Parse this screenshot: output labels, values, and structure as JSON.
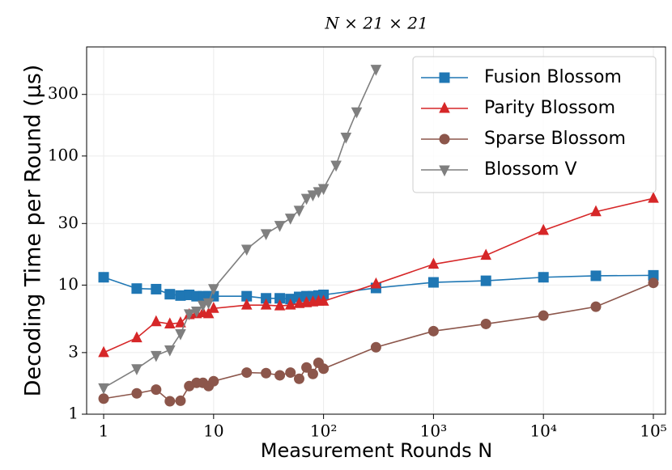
{
  "chart_data": {
    "type": "line",
    "title": "N × 21 × 21",
    "xlabel": "Measurement Rounds N",
    "ylabel": "Decoding Time per Round (μs)",
    "xscale": "log",
    "yscale": "log",
    "grid": true,
    "legend_loc": "upper right",
    "xlim": [
      0.7,
      129000
    ],
    "ylim": [
      1,
      700
    ],
    "xticks": [
      1,
      10,
      {
        "value": 100,
        "label": "10²"
      },
      {
        "value": 1000,
        "label": "10³"
      },
      {
        "value": 10000,
        "label": "10⁴"
      },
      {
        "value": 100000,
        "label": "10⁵"
      }
    ],
    "yticks": [
      1,
      3,
      10,
      30,
      100,
      300
    ],
    "series": [
      {
        "name": "Fusion Blossom",
        "color": "#1f77b4",
        "marker": "square",
        "x": [
          1,
          2,
          3,
          4,
          5,
          6,
          7,
          8,
          9,
          10,
          20,
          30,
          40,
          50,
          60,
          70,
          80,
          90,
          100,
          300,
          1000,
          3000,
          10000,
          30000,
          100000
        ],
        "values": [
          11.5,
          9.4,
          9.3,
          8.5,
          8.3,
          8.4,
          8.2,
          8.2,
          8.2,
          8.2,
          8.2,
          7.9,
          7.9,
          7.8,
          8.1,
          8.2,
          8.2,
          8.3,
          8.4,
          9.5,
          10.5,
          10.8,
          11.5,
          11.8,
          11.9
        ]
      },
      {
        "name": "Parity Blossom",
        "color": "#d62728",
        "marker": "triangle-up",
        "x": [
          1,
          2,
          3,
          4,
          5,
          6,
          7,
          8,
          9,
          10,
          20,
          30,
          40,
          50,
          60,
          70,
          80,
          90,
          100,
          300,
          1000,
          3000,
          10000,
          30000,
          100000
        ],
        "values": [
          3.0,
          3.9,
          5.2,
          5.0,
          5.1,
          5.9,
          6.0,
          6.1,
          6.0,
          6.6,
          7.0,
          7.0,
          6.9,
          7.0,
          7.2,
          7.3,
          7.4,
          7.5,
          7.5,
          10.2,
          14.5,
          17,
          26.5,
          37,
          47
        ]
      },
      {
        "name": "Sparse Blossom",
        "color": "#8c564b",
        "marker": "circle",
        "x": [
          1,
          2,
          3,
          4,
          5,
          6,
          7,
          8,
          9,
          10,
          20,
          30,
          40,
          50,
          60,
          70,
          80,
          90,
          100,
          300,
          1000,
          3000,
          10000,
          30000,
          100000
        ],
        "values": [
          1.32,
          1.45,
          1.55,
          1.26,
          1.27,
          1.65,
          1.75,
          1.75,
          1.65,
          1.8,
          2.1,
          2.08,
          2.0,
          2.1,
          1.88,
          2.3,
          2.05,
          2.5,
          2.25,
          3.3,
          4.4,
          5.0,
          5.8,
          6.8,
          10.4
        ]
      },
      {
        "name": "Blossom V",
        "color": "#7f7f7f",
        "marker": "triangle-down",
        "x": [
          1,
          2,
          3,
          4,
          5,
          6,
          7,
          8,
          9,
          10,
          20,
          30,
          40,
          50,
          60,
          70,
          80,
          90,
          100,
          130,
          160,
          200,
          300
        ],
        "values": [
          1.6,
          2.25,
          2.85,
          3.15,
          4.2,
          6.0,
          6.3,
          7.0,
          7.3,
          9.4,
          19,
          25,
          29,
          33,
          38,
          47,
          50,
          53,
          56,
          85,
          140,
          220,
          470
        ]
      }
    ]
  }
}
